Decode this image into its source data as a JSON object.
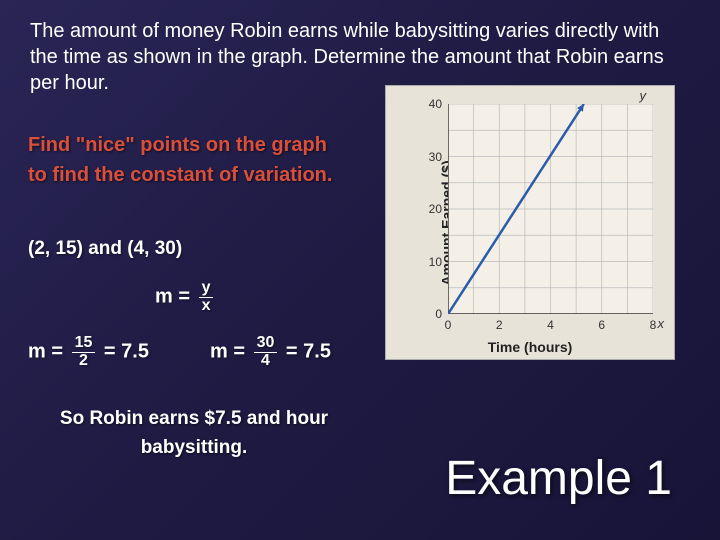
{
  "problem": "The amount of money Robin earns while babysitting varies directly with the time as shown in the graph.  Determine the amount that Robin earns per hour.",
  "instruction": "Find \"nice\" points on the graph to find the constant of variation.",
  "points_text": "(2, 15) and (4, 30)",
  "formula": {
    "lhs": "m = ",
    "num": "y",
    "den": "x"
  },
  "calc1": {
    "prefix": "m = ",
    "num": "15",
    "den": "2",
    "suffix": " = 7.5"
  },
  "calc2": {
    "prefix": "m = ",
    "num": "30",
    "den": "4",
    "suffix": " = 7.5"
  },
  "conclusion": "So Robin earns $7.5 and hour babysitting.",
  "example_title": "Example 1",
  "chart": {
    "type": "line",
    "title_y_var": "y",
    "title_x_var": "x",
    "ylabel": "Amount Earned ($)",
    "xlabel": "Time (hours)",
    "xlim": [
      0,
      8
    ],
    "ylim": [
      0,
      40
    ],
    "xticks": [
      0,
      2,
      4,
      6,
      8
    ],
    "yticks": [
      0,
      10,
      20,
      30,
      40
    ],
    "line_color": "#2a5caa",
    "grid_color": "#bbbbbb",
    "background_color": "#e8e3d8",
    "plot_bg": "#f4f0e8",
    "data": [
      [
        0,
        0
      ],
      [
        5.3,
        40
      ]
    ],
    "arrow": true
  }
}
